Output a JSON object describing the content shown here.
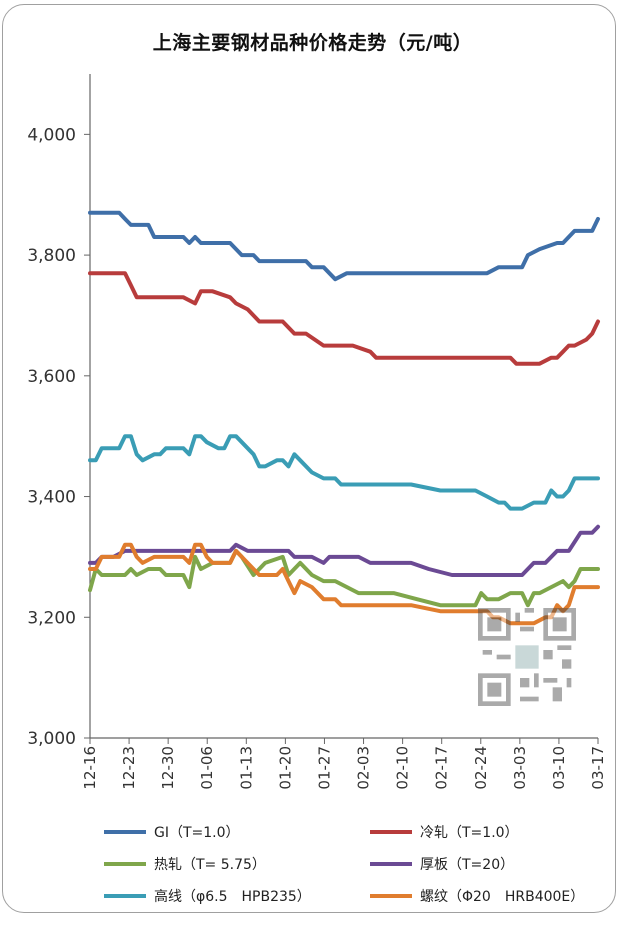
{
  "chart_data": {
    "type": "line",
    "title": "上海主要钢材品种价格走势（元/吨）",
    "xlabel": "",
    "ylabel": "",
    "ylim": [
      3000,
      4100
    ],
    "yticks": [
      3000,
      3200,
      3400,
      3600,
      3800,
      4000
    ],
    "ytick_labels": [
      "3,000",
      "3,200",
      "3,400",
      "3,600",
      "3,800",
      "4,000"
    ],
    "x_ticks": [
      "12-16",
      "12-23",
      "12-30",
      "01-06",
      "01-13",
      "01-20",
      "01-27",
      "02-03",
      "02-10",
      "02-17",
      "02-24",
      "03-03",
      "03-10",
      "03-17"
    ],
    "grid": false,
    "legend_position": "bottom",
    "series": [
      {
        "name": "GI（T=1.0）",
        "color": "#3f6fa8",
        "points": [
          [
            0,
            3870
          ],
          [
            5,
            3870
          ],
          [
            6,
            3860
          ],
          [
            7,
            3850
          ],
          [
            10,
            3850
          ],
          [
            11,
            3830
          ],
          [
            16,
            3830
          ],
          [
            17,
            3820
          ],
          [
            18,
            3830
          ],
          [
            19,
            3820
          ],
          [
            24,
            3820
          ],
          [
            26,
            3800
          ],
          [
            28,
            3800
          ],
          [
            29,
            3790
          ],
          [
            37,
            3790
          ],
          [
            38,
            3780
          ],
          [
            40,
            3780
          ],
          [
            42,
            3760
          ],
          [
            44,
            3770
          ],
          [
            52,
            3770
          ],
          [
            56,
            3770
          ],
          [
            66,
            3770
          ],
          [
            68,
            3770
          ],
          [
            70,
            3780
          ],
          [
            74,
            3780
          ],
          [
            75,
            3800
          ],
          [
            77,
            3810
          ],
          [
            80,
            3820
          ],
          [
            81,
            3820
          ],
          [
            83,
            3840
          ],
          [
            86,
            3840
          ],
          [
            87,
            3860
          ]
        ]
      },
      {
        "name": "冷轧（T=1.0）",
        "color": "#b83c3c",
        "points": [
          [
            0,
            3770
          ],
          [
            6,
            3770
          ],
          [
            7,
            3750
          ],
          [
            8,
            3730
          ],
          [
            10,
            3730
          ],
          [
            11,
            3730
          ],
          [
            16,
            3730
          ],
          [
            18,
            3720
          ],
          [
            19,
            3740
          ],
          [
            21,
            3740
          ],
          [
            24,
            3730
          ],
          [
            25,
            3720
          ],
          [
            27,
            3710
          ],
          [
            29,
            3690
          ],
          [
            33,
            3690
          ],
          [
            35,
            3670
          ],
          [
            37,
            3670
          ],
          [
            40,
            3650
          ],
          [
            42,
            3650
          ],
          [
            45,
            3650
          ],
          [
            48,
            3640
          ],
          [
            49,
            3630
          ],
          [
            56,
            3630
          ],
          [
            66,
            3630
          ],
          [
            70,
            3630
          ],
          [
            72,
            3630
          ],
          [
            73,
            3620
          ],
          [
            77,
            3620
          ],
          [
            79,
            3630
          ],
          [
            80,
            3630
          ],
          [
            81,
            3640
          ],
          [
            82,
            3650
          ],
          [
            83,
            3650
          ],
          [
            85,
            3660
          ],
          [
            86,
            3670
          ],
          [
            87,
            3690
          ]
        ]
      },
      {
        "name": "热轧（T= 5.75）",
        "color": "#7fa64b",
        "points": [
          [
            0,
            3245
          ],
          [
            1,
            3280
          ],
          [
            2,
            3270
          ],
          [
            4,
            3270
          ],
          [
            6,
            3270
          ],
          [
            7,
            3280
          ],
          [
            8,
            3270
          ],
          [
            10,
            3280
          ],
          [
            12,
            3280
          ],
          [
            13,
            3270
          ],
          [
            16,
            3270
          ],
          [
            17,
            3250
          ],
          [
            18,
            3300
          ],
          [
            19,
            3280
          ],
          [
            21,
            3290
          ],
          [
            24,
            3290
          ],
          [
            25,
            3310
          ],
          [
            26,
            3300
          ],
          [
            28,
            3270
          ],
          [
            29,
            3280
          ],
          [
            30,
            3290
          ],
          [
            33,
            3300
          ],
          [
            34,
            3270
          ],
          [
            36,
            3290
          ],
          [
            38,
            3270
          ],
          [
            40,
            3260
          ],
          [
            42,
            3260
          ],
          [
            44,
            3250
          ],
          [
            46,
            3240
          ],
          [
            52,
            3240
          ],
          [
            56,
            3230
          ],
          [
            60,
            3220
          ],
          [
            64,
            3220
          ],
          [
            66,
            3220
          ],
          [
            67,
            3240
          ],
          [
            68,
            3230
          ],
          [
            70,
            3230
          ],
          [
            72,
            3240
          ],
          [
            74,
            3240
          ],
          [
            75,
            3220
          ],
          [
            76,
            3240
          ],
          [
            77,
            3240
          ],
          [
            79,
            3250
          ],
          [
            81,
            3260
          ],
          [
            82,
            3250
          ],
          [
            83,
            3260
          ],
          [
            84,
            3280
          ],
          [
            87,
            3280
          ]
        ]
      },
      {
        "name": "厚板（T=20）",
        "color": "#6b4a94",
        "points": [
          [
            0,
            3290
          ],
          [
            1,
            3290
          ],
          [
            2,
            3300
          ],
          [
            4,
            3300
          ],
          [
            6,
            3310
          ],
          [
            8,
            3310
          ],
          [
            16,
            3310
          ],
          [
            18,
            3310
          ],
          [
            24,
            3310
          ],
          [
            25,
            3320
          ],
          [
            27,
            3310
          ],
          [
            34,
            3310
          ],
          [
            35,
            3300
          ],
          [
            36,
            3300
          ],
          [
            38,
            3300
          ],
          [
            40,
            3290
          ],
          [
            41,
            3300
          ],
          [
            46,
            3300
          ],
          [
            48,
            3290
          ],
          [
            50,
            3290
          ],
          [
            55,
            3290
          ],
          [
            58,
            3280
          ],
          [
            62,
            3270
          ],
          [
            66,
            3270
          ],
          [
            72,
            3270
          ],
          [
            74,
            3270
          ],
          [
            76,
            3290
          ],
          [
            78,
            3290
          ],
          [
            80,
            3310
          ],
          [
            82,
            3310
          ],
          [
            84,
            3340
          ],
          [
            86,
            3340
          ],
          [
            87,
            3350
          ]
        ]
      },
      {
        "name": "高线（φ6.5　HPB235）",
        "color": "#3a9db5",
        "points": [
          [
            0,
            3460
          ],
          [
            1,
            3460
          ],
          [
            2,
            3480
          ],
          [
            5,
            3480
          ],
          [
            6,
            3500
          ],
          [
            7,
            3500
          ],
          [
            8,
            3470
          ],
          [
            9,
            3460
          ],
          [
            11,
            3470
          ],
          [
            12,
            3470
          ],
          [
            13,
            3480
          ],
          [
            16,
            3480
          ],
          [
            17,
            3470
          ],
          [
            18,
            3500
          ],
          [
            19,
            3500
          ],
          [
            20,
            3490
          ],
          [
            22,
            3480
          ],
          [
            23,
            3480
          ],
          [
            24,
            3500
          ],
          [
            25,
            3500
          ],
          [
            26,
            3490
          ],
          [
            27,
            3480
          ],
          [
            28,
            3470
          ],
          [
            29,
            3450
          ],
          [
            30,
            3450
          ],
          [
            32,
            3460
          ],
          [
            33,
            3460
          ],
          [
            34,
            3450
          ],
          [
            35,
            3470
          ],
          [
            36,
            3460
          ],
          [
            38,
            3440
          ],
          [
            40,
            3430
          ],
          [
            42,
            3430
          ],
          [
            43,
            3420
          ],
          [
            49,
            3420
          ],
          [
            55,
            3420
          ],
          [
            60,
            3410
          ],
          [
            64,
            3410
          ],
          [
            66,
            3410
          ],
          [
            68,
            3400
          ],
          [
            70,
            3390
          ],
          [
            71,
            3390
          ],
          [
            72,
            3380
          ],
          [
            74,
            3380
          ],
          [
            76,
            3390
          ],
          [
            78,
            3390
          ],
          [
            79,
            3410
          ],
          [
            80,
            3400
          ],
          [
            81,
            3400
          ],
          [
            82,
            3410
          ],
          [
            83,
            3430
          ],
          [
            86,
            3430
          ],
          [
            87,
            3430
          ]
        ]
      },
      {
        "name": "螺纹（Φ20　HRB400E）",
        "color": "#e07d2e",
        "points": [
          [
            0,
            3280
          ],
          [
            1,
            3280
          ],
          [
            2,
            3300
          ],
          [
            5,
            3300
          ],
          [
            6,
            3320
          ],
          [
            7,
            3320
          ],
          [
            8,
            3300
          ],
          [
            9,
            3290
          ],
          [
            11,
            3300
          ],
          [
            16,
            3300
          ],
          [
            17,
            3290
          ],
          [
            18,
            3320
          ],
          [
            19,
            3320
          ],
          [
            20,
            3300
          ],
          [
            21,
            3290
          ],
          [
            24,
            3290
          ],
          [
            25,
            3310
          ],
          [
            26,
            3300
          ],
          [
            28,
            3280
          ],
          [
            29,
            3270
          ],
          [
            32,
            3270
          ],
          [
            33,
            3280
          ],
          [
            34,
            3260
          ],
          [
            35,
            3240
          ],
          [
            36,
            3260
          ],
          [
            38,
            3250
          ],
          [
            40,
            3230
          ],
          [
            42,
            3230
          ],
          [
            43,
            3220
          ],
          [
            49,
            3220
          ],
          [
            55,
            3220
          ],
          [
            60,
            3210
          ],
          [
            64,
            3210
          ],
          [
            68,
            3210
          ],
          [
            69,
            3200
          ],
          [
            70,
            3200
          ],
          [
            72,
            3190
          ],
          [
            76,
            3190
          ],
          [
            78,
            3200
          ],
          [
            79,
            3200
          ],
          [
            80,
            3220
          ],
          [
            81,
            3210
          ],
          [
            82,
            3220
          ],
          [
            83,
            3250
          ],
          [
            87,
            3250
          ]
        ]
      }
    ]
  }
}
